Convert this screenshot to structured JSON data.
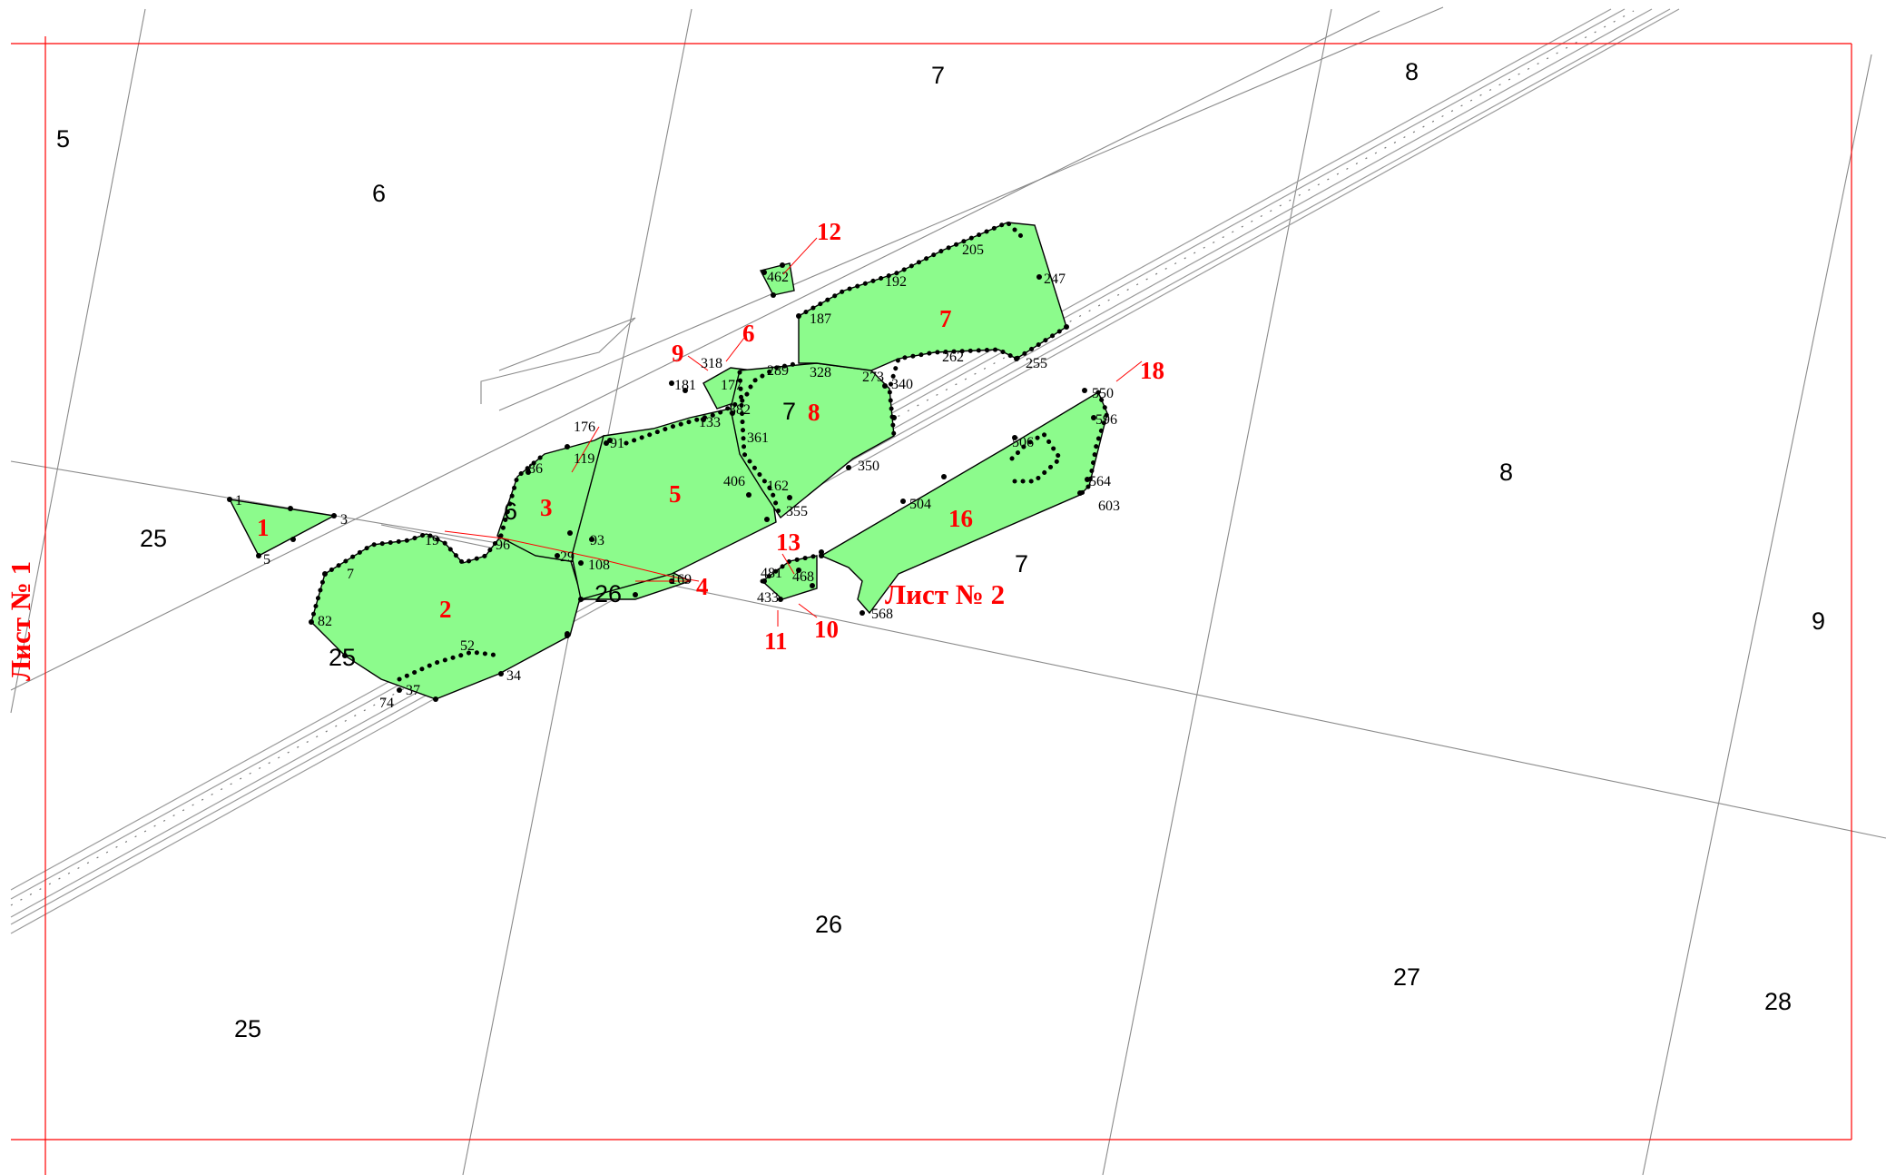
{
  "map": {
    "sheets": {
      "sheet1": "Лист № 1",
      "sheet2": "Лист № 2"
    },
    "colors": {
      "plot_fill": "#8cfb8c",
      "frame": "#ff0000",
      "plot_number": "#ff0000",
      "grid_line": "#8a8a8a"
    },
    "quarter_labels": {
      "q5": "5",
      "q6_top": "6",
      "q7_top": "7",
      "q8_top": "8",
      "q8_right": "8",
      "q9": "9",
      "q25_left": "25",
      "q25_plot": "25",
      "q25_bottom": "25",
      "q6_mid": "6",
      "q7_mid": "7",
      "q7_right": "7",
      "q26_mid": "26",
      "q26_bottom": "26",
      "q27": "27",
      "q28": "28"
    },
    "plot_numbers": {
      "p1": "1",
      "p2": "2",
      "p3": "3",
      "p4": "4",
      "p5": "5",
      "p6": "6",
      "p7": "7",
      "p8": "8",
      "p9": "9",
      "p10": "10",
      "p11": "11",
      "p12": "12",
      "p13": "13",
      "p16": "16",
      "p18": "18"
    },
    "vertex_labels": {
      "v1": "1",
      "v3": "3",
      "v5": "5",
      "v7": "7",
      "v19": "19",
      "v29": "29",
      "v34": "34",
      "v37": "37",
      "v52": "52",
      "v74": "74",
      "v82": "82",
      "v86": "86",
      "v91": "91",
      "v93": "93",
      "v96": "96",
      "v108": "108",
      "v119": "119",
      "v133": "133",
      "v162": "162",
      "v169": "169",
      "v176": "176",
      "v177": "177",
      "v181": "181",
      "v187": "187",
      "v192": "192",
      "v205": "205",
      "v247": "247",
      "v255": "255",
      "v262": "262",
      "v273": "273",
      "v289": "289",
      "v318": "318",
      "v328": "328",
      "v340": "340",
      "v350": "350",
      "v355": "355",
      "v361": "361",
      "v382": "382",
      "v406": "406",
      "v433": "433",
      "v462": "462",
      "v468": "468",
      "v481": "481",
      "v504": "504",
      "v506": "506",
      "v550": "550",
      "v564": "564",
      "v568": "568",
      "v596": "596",
      "v603": "603"
    }
  }
}
